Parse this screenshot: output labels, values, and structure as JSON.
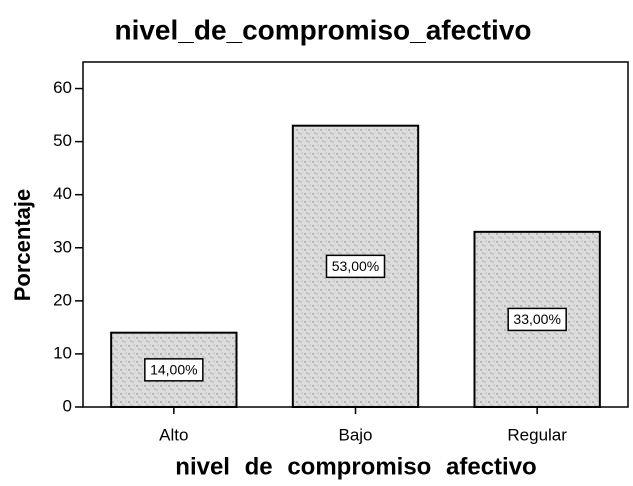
{
  "chart_data": {
    "type": "bar",
    "title": "nivel_de_compromiso_afectivo",
    "x_label": "nivel de compromiso afectivo",
    "y_label": "Porcentaje",
    "categories": [
      "Alto",
      "Bajo",
      "Regular"
    ],
    "values": [
      14,
      53,
      33
    ],
    "value_labels": [
      "14,00%",
      "53,00%",
      "33,00%"
    ],
    "color": "#dcdcdc",
    "ylim": [
      0,
      65
    ],
    "yticks": [
      0,
      10,
      20,
      30,
      40,
      50,
      60
    ],
    "grid": false
  }
}
